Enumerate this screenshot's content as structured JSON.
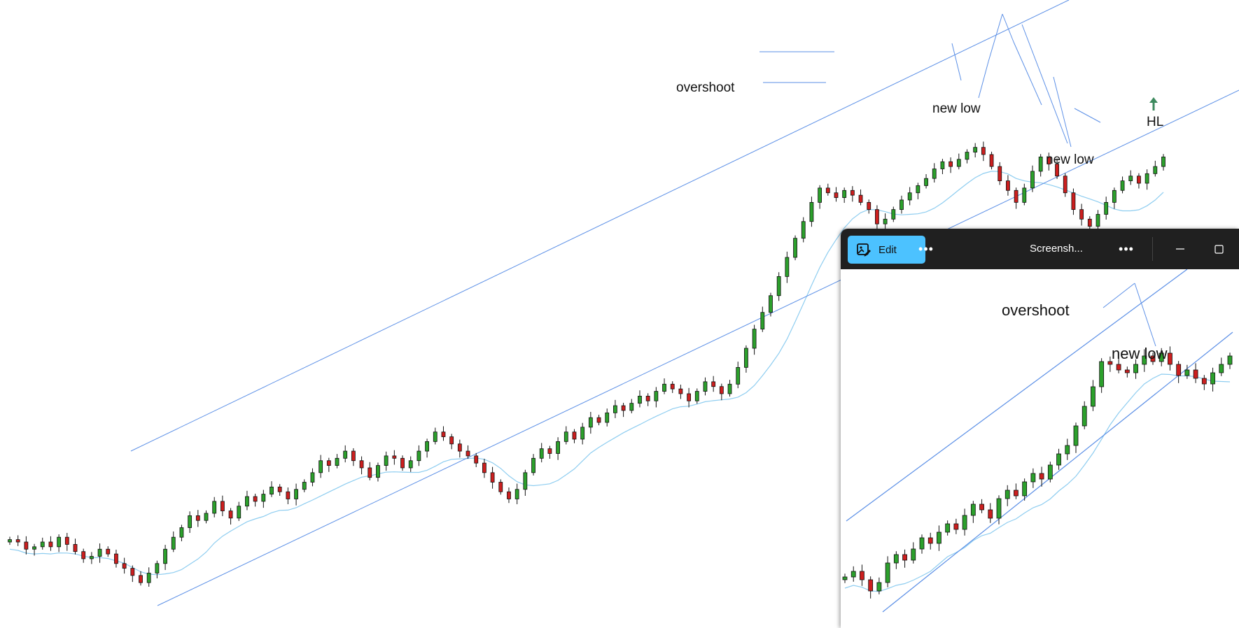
{
  "chart_data": [
    {
      "type": "candlestick",
      "title": "",
      "xlabel": "",
      "ylabel": "",
      "grid": false,
      "annotations": [
        "overshoot",
        "new low",
        "new low",
        "HL"
      ],
      "drawings": [
        "ascending channel",
        "moving average",
        "consolidation box",
        "trend lines"
      ],
      "colors": {
        "up": "#2ca02c",
        "down": "#cc1f1f",
        "wick": "#111111",
        "channel": "#5b8fe6",
        "ma": "#8ecdf0",
        "arrow": "#3d8a5e"
      },
      "series": [
        {
          "name": "",
          "values": [
            100,
            99,
            96,
            97,
            99,
            97,
            101,
            98,
            95,
            92,
            93,
            96,
            94,
            90,
            88,
            85,
            82,
            86,
            90,
            96,
            101,
            105,
            110,
            108,
            111,
            116,
            112,
            109,
            114,
            118,
            116,
            119,
            122,
            120,
            117,
            121,
            124,
            128,
            133,
            131,
            134,
            137,
            133,
            130,
            126,
            131,
            135,
            134,
            130,
            133,
            137,
            141,
            145,
            143,
            140,
            137,
            135,
            132,
            128,
            124,
            120,
            117,
            121,
            128,
            134,
            138,
            136,
            141,
            145,
            142,
            147,
            151,
            149,
            153,
            156,
            154,
            157,
            160,
            158,
            162,
            165,
            163,
            161,
            158,
            162,
            166,
            164,
            161,
            165,
            172,
            180,
            188,
            195,
            202,
            210,
            218,
            226,
            233,
            241,
            247,
            245,
            243,
            246,
            244,
            241,
            238,
            232,
            234,
            238,
            242,
            245,
            248,
            251,
            255,
            258,
            256,
            259,
            262,
            264,
            261,
            256,
            250,
            246,
            241,
            247,
            254,
            260,
            257,
            252,
            245,
            238,
            234,
            231,
            236,
            241,
            246,
            250,
            252,
            249,
            253,
            256,
            260
          ]
        }
      ]
    },
    {
      "type": "candlestick",
      "title": "",
      "xlabel": "",
      "ylabel": "",
      "grid": false,
      "annotations": [
        "overshoot",
        "new low"
      ],
      "series": [
        {
          "name": "",
          "values": [
            50,
            52,
            49,
            45,
            48,
            55,
            58,
            56,
            60,
            64,
            62,
            66,
            69,
            67,
            72,
            76,
            74,
            71,
            78,
            81,
            79,
            84,
            87,
            85,
            90,
            94,
            97,
            104,
            111,
            118,
            127,
            126,
            124,
            123,
            126,
            129,
            127,
            130,
            126,
            122,
            124,
            121,
            119,
            123,
            126,
            129
          ]
        }
      ]
    }
  ],
  "viewer": {
    "edit_label": "Edit",
    "more_label": "•••",
    "title": "Screensh...",
    "title_more_label": "•••"
  }
}
